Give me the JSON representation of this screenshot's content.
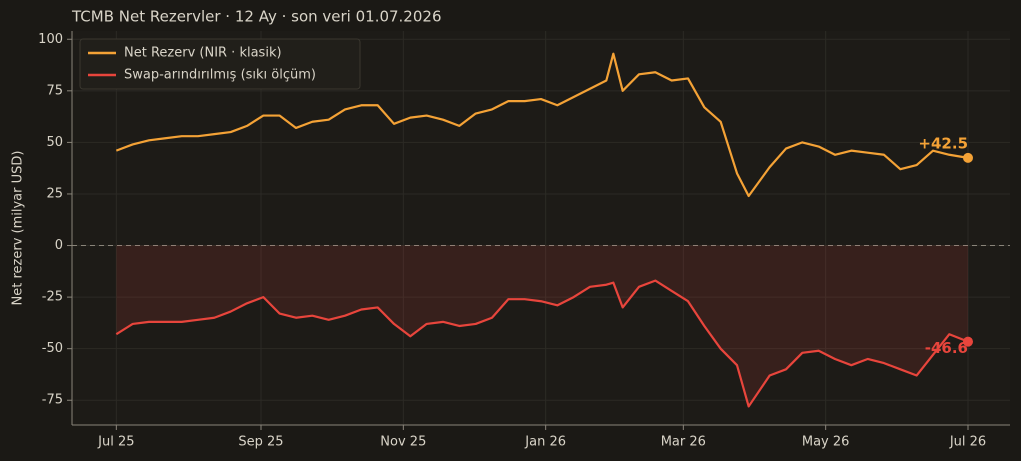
{
  "chart_data": {
    "type": "line",
    "title": "TCMB Net Rezervler · 12 Ay · son veri 01.07.2026",
    "y_label": "Net rezerv (milyar USD)",
    "x": [
      0,
      7,
      14,
      21,
      28,
      35,
      42,
      49,
      56,
      63,
      70,
      77,
      84,
      91,
      98,
      105,
      112,
      119,
      126,
      133,
      140,
      147,
      154,
      161,
      168,
      175,
      182,
      189,
      196,
      203,
      210,
      213,
      217,
      224,
      231,
      238,
      245,
      252,
      259,
      266,
      271,
      280,
      287,
      294,
      301,
      308,
      315,
      322,
      329,
      336,
      343,
      350,
      357,
      365
    ],
    "series": [
      {
        "name": "Net Rezerv (NIR · klasik)",
        "color": "#f4a236",
        "end_label": "+42.5",
        "values": [
          46,
          49,
          51,
          52,
          53,
          53,
          54,
          55,
          58,
          63,
          63,
          57,
          60,
          61,
          66,
          68,
          68,
          59,
          62,
          63,
          61,
          58,
          64,
          66,
          70,
          70,
          71,
          68,
          72,
          76,
          80,
          93,
          75,
          83,
          84,
          80,
          81,
          67,
          60,
          35,
          24,
          38,
          47,
          50,
          48,
          44,
          46,
          45,
          44,
          37,
          39,
          46,
          44,
          42.5
        ]
      },
      {
        "name": "Swap-arındırılmış (sıkı ölçüm)",
        "color": "#e8453c",
        "end_label": "-46.6",
        "values": [
          -43,
          -38,
          -37,
          -37,
          -37,
          -36,
          -35,
          -32,
          -28,
          -25,
          -33,
          -35,
          -34,
          -36,
          -34,
          -31,
          -30,
          -38,
          -44,
          -38,
          -37,
          -39,
          -38,
          -35,
          -26,
          -26,
          -27,
          -29,
          -25,
          -20,
          -19,
          -18,
          -30,
          -20,
          -17,
          -22,
          -27,
          -39,
          -50,
          -58,
          -78,
          -63,
          -60,
          -52,
          -51,
          -55,
          -58,
          -55,
          -57,
          -60,
          -63,
          -53,
          -43,
          -46.6
        ]
      }
    ],
    "xlim": [
      -19,
      383
    ],
    "xticks": [
      {
        "value": 0,
        "label": "Jul 25"
      },
      {
        "value": 62,
        "label": "Sep 25"
      },
      {
        "value": 123,
        "label": "Nov 25"
      },
      {
        "value": 184,
        "label": "Jan 26"
      },
      {
        "value": 243,
        "label": "Mar 26"
      },
      {
        "value": 304,
        "label": "May 26"
      },
      {
        "value": 365,
        "label": "Jul 26"
      }
    ],
    "ylim": [
      -87,
      104
    ],
    "yticks": [
      -75,
      -50,
      -25,
      0,
      25,
      50,
      75,
      100
    ],
    "grid": true,
    "legend": "upper left"
  }
}
